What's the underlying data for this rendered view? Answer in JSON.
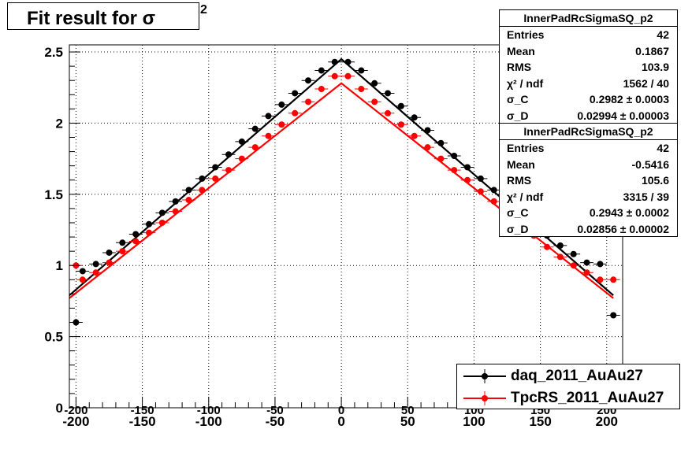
{
  "title": {
    "text": "Fit result for σ",
    "superscript": "2"
  },
  "stats_boxes": [
    {
      "name": "InnerPadRcSigmaSQ_p2",
      "rows": [
        {
          "label": "Entries",
          "value": "42"
        },
        {
          "label": "Mean",
          "value": "0.1867"
        },
        {
          "label": "RMS",
          "value": "103.9"
        },
        {
          "label": "χ² / ndf",
          "value": "1562 / 40"
        },
        {
          "label": "σ_C",
          "value": "0.2982 ± 0.0003"
        },
        {
          "label": "σ_D",
          "value": "0.02994 ± 0.00003"
        }
      ]
    },
    {
      "name": "InnerPadRcSigmaSQ_p2",
      "rows": [
        {
          "label": "Entries",
          "value": "42"
        },
        {
          "label": "Mean",
          "value": "-0.5416"
        },
        {
          "label": "RMS",
          "value": "105.6"
        },
        {
          "label": "χ² / ndf",
          "value": "3315 / 39"
        },
        {
          "label": "σ_C",
          "value": "0.2943 ± 0.0002"
        },
        {
          "label": "σ_D",
          "value": "0.02856 ± 0.00002"
        }
      ]
    }
  ],
  "legend": [
    {
      "label": "daq_2011_AuAu27",
      "color": "#000000"
    },
    {
      "label": "TpcRS_2011_AuAu27",
      "color": "#ff0000"
    }
  ],
  "chart_data": {
    "type": "scatter",
    "xlim": [
      -205,
      212
    ],
    "ylim": [
      0,
      2.55
    ],
    "x_ticks": [
      -200,
      -150,
      -100,
      -50,
      0,
      50,
      100,
      150,
      200
    ],
    "x_tick_labels": [
      "-200",
      "-150",
      "-100",
      "-50",
      "0",
      "50",
      "100",
      "150",
      "200"
    ],
    "y_ticks": [
      0,
      0.5,
      1,
      1.5,
      2,
      2.5
    ],
    "y_tick_labels": [
      "0",
      "0.5",
      "1",
      "1.5",
      "2",
      "2.5"
    ],
    "grid": true,
    "x_err": 5,
    "series": [
      {
        "name": "daq_2011_AuAu27",
        "color": "#000000",
        "x": [
          -200,
          -195,
          -185,
          -175,
          -165,
          -155,
          -145,
          -135,
          -125,
          -115,
          -105,
          -95,
          -85,
          -75,
          -65,
          -55,
          -45,
          -35,
          -25,
          -15,
          -5,
          5,
          15,
          25,
          35,
          45,
          55,
          65,
          75,
          85,
          95,
          105,
          115,
          125,
          135,
          145,
          155,
          165,
          175,
          185,
          195,
          205
        ],
        "y": [
          0.6,
          0.96,
          1.01,
          1.09,
          1.16,
          1.22,
          1.29,
          1.37,
          1.45,
          1.53,
          1.61,
          1.69,
          1.78,
          1.87,
          1.96,
          2.05,
          2.13,
          2.21,
          2.3,
          2.37,
          2.43,
          2.43,
          2.37,
          2.28,
          2.21,
          2.12,
          2.04,
          1.95,
          1.86,
          1.77,
          1.69,
          1.61,
          1.53,
          1.45,
          1.37,
          1.29,
          1.21,
          1.14,
          1.08,
          1.02,
          1.01,
          0.65
        ]
      },
      {
        "name": "TpcRS_2011_AuAu27",
        "color": "#ff0000",
        "x": [
          -200,
          -195,
          -185,
          -175,
          -165,
          -155,
          -145,
          -135,
          -125,
          -115,
          -105,
          -95,
          -85,
          -75,
          -65,
          -55,
          -45,
          -35,
          -25,
          -15,
          -5,
          5,
          15,
          25,
          35,
          45,
          55,
          65,
          75,
          85,
          95,
          105,
          115,
          125,
          135,
          145,
          155,
          165,
          175,
          185,
          195,
          205
        ],
        "y": [
          1.0,
          0.9,
          0.95,
          1.02,
          1.1,
          1.17,
          1.23,
          1.3,
          1.38,
          1.46,
          1.53,
          1.61,
          1.67,
          1.75,
          1.83,
          1.91,
          1.99,
          2.07,
          2.15,
          2.24,
          2.33,
          2.33,
          2.24,
          2.15,
          2.07,
          1.99,
          1.91,
          1.83,
          1.75,
          1.67,
          1.6,
          1.52,
          1.45,
          1.37,
          1.29,
          1.21,
          1.13,
          1.06,
          1.0,
          0.95,
          0.9,
          0.9
        ]
      }
    ],
    "fits": [
      {
        "name": "daq_2011_AuAu27",
        "color": "#000000",
        "points": [
          [
            -205,
            0.79
          ],
          [
            0,
            2.45
          ],
          [
            205,
            0.79
          ]
        ]
      },
      {
        "name": "TpcRS_2011_AuAu27",
        "color": "#ff0000",
        "points": [
          [
            -205,
            0.77
          ],
          [
            0,
            2.28
          ],
          [
            205,
            0.77
          ]
        ]
      }
    ]
  }
}
